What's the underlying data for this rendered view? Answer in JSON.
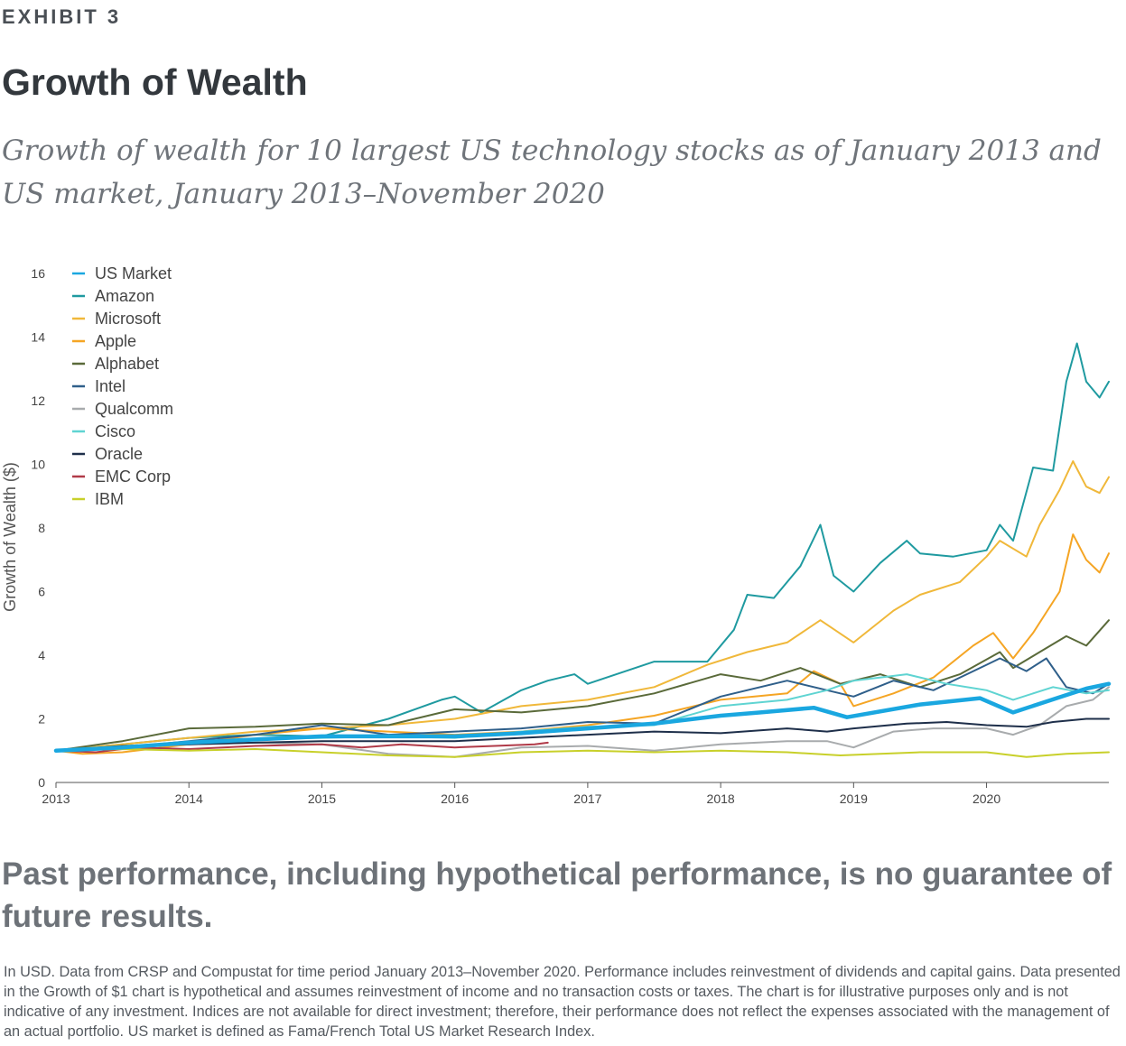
{
  "header": {
    "exhibit": "EXHIBIT 3",
    "title": "Growth of Wealth",
    "subtitle": "Growth of wealth for 10 largest US technology stocks as of January 2013 and US market, January 2013–November 2020"
  },
  "disclaimer": "Past performance, including hypothetical performance, is no guarantee of future results.",
  "footnote": "In USD. Data from CRSP and Compustat for time period January 2013–November 2020. Performance includes reinvestment of dividends and capital gains. Data presented in the Growth of $1 chart is hypothetical and assumes reinvestment of income and no transaction costs or taxes. The chart is for illustrative purposes only and is not indicative of any investment. Indices are not available for direct investment; therefore, their performance does not reflect the expenses associated with the management of an actual portfolio. US market is defined as Fama/French Total US Market Research Index.",
  "chart_data": {
    "type": "line",
    "ylabel": "Growth of Wealth ($)",
    "xlabel": "",
    "xlim": [
      2013,
      2020.92
    ],
    "ylim": [
      0,
      16
    ],
    "x_ticks": [
      2013,
      2014,
      2015,
      2016,
      2017,
      2018,
      2019,
      2020
    ],
    "y_ticks": [
      0,
      2,
      4,
      6,
      8,
      10,
      12,
      14,
      16
    ],
    "grid": false,
    "legend": "top-left",
    "series": [
      {
        "name": "US Market",
        "color": "#1aa7e0",
        "width": 4.5,
        "points": [
          [
            2013,
            1.0
          ],
          [
            2013.5,
            1.1
          ],
          [
            2014,
            1.25
          ],
          [
            2014.5,
            1.35
          ],
          [
            2015,
            1.45
          ],
          [
            2015.5,
            1.45
          ],
          [
            2016,
            1.45
          ],
          [
            2016.5,
            1.55
          ],
          [
            2017,
            1.7
          ],
          [
            2017.5,
            1.85
          ],
          [
            2018,
            2.1
          ],
          [
            2018.3,
            2.2
          ],
          [
            2018.7,
            2.35
          ],
          [
            2018.95,
            2.05
          ],
          [
            2019.5,
            2.45
          ],
          [
            2019.95,
            2.65
          ],
          [
            2020.2,
            2.2
          ],
          [
            2020.6,
            2.75
          ],
          [
            2020.75,
            2.95
          ],
          [
            2020.92,
            3.1
          ]
        ]
      },
      {
        "name": "Amazon",
        "color": "#1f9aa0",
        "width": 2,
        "points": [
          [
            2013,
            1.0
          ],
          [
            2013.5,
            1.2
          ],
          [
            2014,
            1.4
          ],
          [
            2014.5,
            1.5
          ],
          [
            2015,
            1.45
          ],
          [
            2015.5,
            2.0
          ],
          [
            2015.9,
            2.6
          ],
          [
            2016,
            2.7
          ],
          [
            2016.2,
            2.2
          ],
          [
            2016.5,
            2.9
          ],
          [
            2016.7,
            3.2
          ],
          [
            2016.9,
            3.4
          ],
          [
            2017,
            3.1
          ],
          [
            2017.5,
            3.8
          ],
          [
            2017.9,
            3.8
          ],
          [
            2018.1,
            4.8
          ],
          [
            2018.2,
            5.9
          ],
          [
            2018.4,
            5.8
          ],
          [
            2018.6,
            6.8
          ],
          [
            2018.75,
            8.1
          ],
          [
            2018.85,
            6.5
          ],
          [
            2019,
            6.0
          ],
          [
            2019.2,
            6.9
          ],
          [
            2019.4,
            7.6
          ],
          [
            2019.5,
            7.2
          ],
          [
            2019.75,
            7.1
          ],
          [
            2020,
            7.3
          ],
          [
            2020.1,
            8.1
          ],
          [
            2020.2,
            7.6
          ],
          [
            2020.35,
            9.9
          ],
          [
            2020.5,
            9.8
          ],
          [
            2020.6,
            12.6
          ],
          [
            2020.68,
            13.8
          ],
          [
            2020.75,
            12.6
          ],
          [
            2020.85,
            12.1
          ],
          [
            2020.92,
            12.6
          ]
        ]
      },
      {
        "name": "Microsoft",
        "color": "#f0b83a",
        "width": 2,
        "points": [
          [
            2013,
            1.0
          ],
          [
            2013.5,
            1.2
          ],
          [
            2014,
            1.4
          ],
          [
            2014.5,
            1.6
          ],
          [
            2015,
            1.7
          ],
          [
            2015.5,
            1.8
          ],
          [
            2016,
            2.0
          ],
          [
            2016.5,
            2.4
          ],
          [
            2017,
            2.6
          ],
          [
            2017.5,
            3.0
          ],
          [
            2017.9,
            3.7
          ],
          [
            2018.2,
            4.1
          ],
          [
            2018.5,
            4.4
          ],
          [
            2018.75,
            5.1
          ],
          [
            2019,
            4.4
          ],
          [
            2019.3,
            5.4
          ],
          [
            2019.5,
            5.9
          ],
          [
            2019.8,
            6.3
          ],
          [
            2020,
            7.1
          ],
          [
            2020.1,
            7.6
          ],
          [
            2020.3,
            7.1
          ],
          [
            2020.4,
            8.1
          ],
          [
            2020.55,
            9.2
          ],
          [
            2020.65,
            10.1
          ],
          [
            2020.75,
            9.3
          ],
          [
            2020.85,
            9.1
          ],
          [
            2020.92,
            9.6
          ]
        ]
      },
      {
        "name": "Apple",
        "color": "#f5a524",
        "width": 2,
        "points": [
          [
            2013,
            1.0
          ],
          [
            2013.2,
            0.9
          ],
          [
            2013.5,
            0.95
          ],
          [
            2014,
            1.2
          ],
          [
            2014.5,
            1.5
          ],
          [
            2015,
            1.7
          ],
          [
            2015.5,
            1.6
          ],
          [
            2016,
            1.5
          ],
          [
            2016.5,
            1.6
          ],
          [
            2017,
            1.8
          ],
          [
            2017.5,
            2.1
          ],
          [
            2018,
            2.6
          ],
          [
            2018.5,
            2.8
          ],
          [
            2018.7,
            3.5
          ],
          [
            2018.9,
            3.1
          ],
          [
            2019,
            2.4
          ],
          [
            2019.3,
            2.8
          ],
          [
            2019.6,
            3.3
          ],
          [
            2019.9,
            4.3
          ],
          [
            2020.05,
            4.7
          ],
          [
            2020.2,
            3.9
          ],
          [
            2020.35,
            4.7
          ],
          [
            2020.55,
            6.0
          ],
          [
            2020.65,
            7.8
          ],
          [
            2020.75,
            7.0
          ],
          [
            2020.85,
            6.6
          ],
          [
            2020.92,
            7.2
          ]
        ]
      },
      {
        "name": "Alphabet",
        "color": "#5a6a3a",
        "width": 2,
        "points": [
          [
            2013,
            1.0
          ],
          [
            2013.5,
            1.3
          ],
          [
            2014,
            1.7
          ],
          [
            2014.5,
            1.75
          ],
          [
            2015,
            1.85
          ],
          [
            2015.5,
            1.8
          ],
          [
            2016,
            2.3
          ],
          [
            2016.5,
            2.2
          ],
          [
            2017,
            2.4
          ],
          [
            2017.5,
            2.8
          ],
          [
            2018,
            3.4
          ],
          [
            2018.3,
            3.2
          ],
          [
            2018.6,
            3.6
          ],
          [
            2018.9,
            3.1
          ],
          [
            2019.2,
            3.4
          ],
          [
            2019.5,
            3.0
          ],
          [
            2019.8,
            3.4
          ],
          [
            2020.1,
            4.1
          ],
          [
            2020.2,
            3.6
          ],
          [
            2020.4,
            4.1
          ],
          [
            2020.6,
            4.6
          ],
          [
            2020.75,
            4.3
          ],
          [
            2020.92,
            5.1
          ]
        ]
      },
      {
        "name": "Intel",
        "color": "#2f5f8a",
        "width": 2,
        "points": [
          [
            2013,
            1.0
          ],
          [
            2013.5,
            1.1
          ],
          [
            2014,
            1.3
          ],
          [
            2014.5,
            1.5
          ],
          [
            2015,
            1.8
          ],
          [
            2015.5,
            1.5
          ],
          [
            2016,
            1.6
          ],
          [
            2016.5,
            1.7
          ],
          [
            2017,
            1.9
          ],
          [
            2017.5,
            1.85
          ],
          [
            2018,
            2.7
          ],
          [
            2018.5,
            3.2
          ],
          [
            2018.8,
            2.9
          ],
          [
            2019,
            2.7
          ],
          [
            2019.3,
            3.2
          ],
          [
            2019.6,
            2.9
          ],
          [
            2020,
            3.7
          ],
          [
            2020.1,
            3.9
          ],
          [
            2020.3,
            3.5
          ],
          [
            2020.45,
            3.9
          ],
          [
            2020.6,
            3.0
          ],
          [
            2020.8,
            2.8
          ],
          [
            2020.92,
            3.1
          ]
        ]
      },
      {
        "name": "Qualcomm",
        "color": "#a8abad",
        "width": 2,
        "points": [
          [
            2013,
            1.0
          ],
          [
            2013.5,
            1.1
          ],
          [
            2014,
            1.2
          ],
          [
            2014.5,
            1.25
          ],
          [
            2015,
            1.2
          ],
          [
            2015.5,
            0.9
          ],
          [
            2016,
            0.8
          ],
          [
            2016.5,
            1.1
          ],
          [
            2017,
            1.15
          ],
          [
            2017.5,
            1.0
          ],
          [
            2018,
            1.2
          ],
          [
            2018.5,
            1.3
          ],
          [
            2018.8,
            1.3
          ],
          [
            2019,
            1.1
          ],
          [
            2019.3,
            1.6
          ],
          [
            2019.6,
            1.7
          ],
          [
            2020,
            1.7
          ],
          [
            2020.2,
            1.5
          ],
          [
            2020.4,
            1.8
          ],
          [
            2020.6,
            2.4
          ],
          [
            2020.8,
            2.6
          ],
          [
            2020.92,
            3.0
          ]
        ]
      },
      {
        "name": "Cisco",
        "color": "#5fd4d2",
        "width": 2,
        "points": [
          [
            2013,
            1.0
          ],
          [
            2013.5,
            1.15
          ],
          [
            2014,
            1.2
          ],
          [
            2014.5,
            1.35
          ],
          [
            2015,
            1.4
          ],
          [
            2015.5,
            1.45
          ],
          [
            2016,
            1.4
          ],
          [
            2016.5,
            1.6
          ],
          [
            2017,
            1.75
          ],
          [
            2017.5,
            1.8
          ],
          [
            2018,
            2.4
          ],
          [
            2018.5,
            2.6
          ],
          [
            2018.8,
            2.9
          ],
          [
            2019,
            3.2
          ],
          [
            2019.4,
            3.4
          ],
          [
            2019.7,
            3.1
          ],
          [
            2020,
            2.9
          ],
          [
            2020.2,
            2.6
          ],
          [
            2020.5,
            3.0
          ],
          [
            2020.75,
            2.8
          ],
          [
            2020.92,
            2.9
          ]
        ]
      },
      {
        "name": "Oracle",
        "color": "#1e2f4a",
        "width": 2,
        "points": [
          [
            2013,
            1.0
          ],
          [
            2013.5,
            1.15
          ],
          [
            2014,
            1.2
          ],
          [
            2014.5,
            1.25
          ],
          [
            2015,
            1.3
          ],
          [
            2015.5,
            1.3
          ],
          [
            2016,
            1.3
          ],
          [
            2016.5,
            1.4
          ],
          [
            2017,
            1.5
          ],
          [
            2017.5,
            1.6
          ],
          [
            2018,
            1.55
          ],
          [
            2018.5,
            1.7
          ],
          [
            2018.8,
            1.6
          ],
          [
            2019,
            1.7
          ],
          [
            2019.4,
            1.85
          ],
          [
            2019.7,
            1.9
          ],
          [
            2020,
            1.8
          ],
          [
            2020.3,
            1.75
          ],
          [
            2020.5,
            1.9
          ],
          [
            2020.75,
            2.0
          ],
          [
            2020.92,
            2.0
          ]
        ]
      },
      {
        "name": "EMC Corp",
        "color": "#b03a48",
        "width": 2,
        "points": [
          [
            2013,
            1.0
          ],
          [
            2013.3,
            0.95
          ],
          [
            2013.6,
            1.1
          ],
          [
            2014,
            1.05
          ],
          [
            2014.5,
            1.15
          ],
          [
            2015,
            1.2
          ],
          [
            2015.3,
            1.1
          ],
          [
            2015.6,
            1.2
          ],
          [
            2016,
            1.1
          ],
          [
            2016.3,
            1.15
          ],
          [
            2016.6,
            1.2
          ],
          [
            2016.7,
            1.25
          ]
        ]
      },
      {
        "name": "IBM",
        "color": "#c8d02a",
        "width": 2,
        "points": [
          [
            2013,
            1.0
          ],
          [
            2013.5,
            1.05
          ],
          [
            2014,
            1.0
          ],
          [
            2014.5,
            1.05
          ],
          [
            2015,
            0.95
          ],
          [
            2015.5,
            0.85
          ],
          [
            2016,
            0.8
          ],
          [
            2016.5,
            0.95
          ],
          [
            2017,
            1.0
          ],
          [
            2017.5,
            0.95
          ],
          [
            2018,
            1.0
          ],
          [
            2018.5,
            0.95
          ],
          [
            2018.9,
            0.85
          ],
          [
            2019.2,
            0.9
          ],
          [
            2019.5,
            0.95
          ],
          [
            2020,
            0.95
          ],
          [
            2020.3,
            0.8
          ],
          [
            2020.6,
            0.9
          ],
          [
            2020.92,
            0.95
          ]
        ]
      }
    ]
  }
}
